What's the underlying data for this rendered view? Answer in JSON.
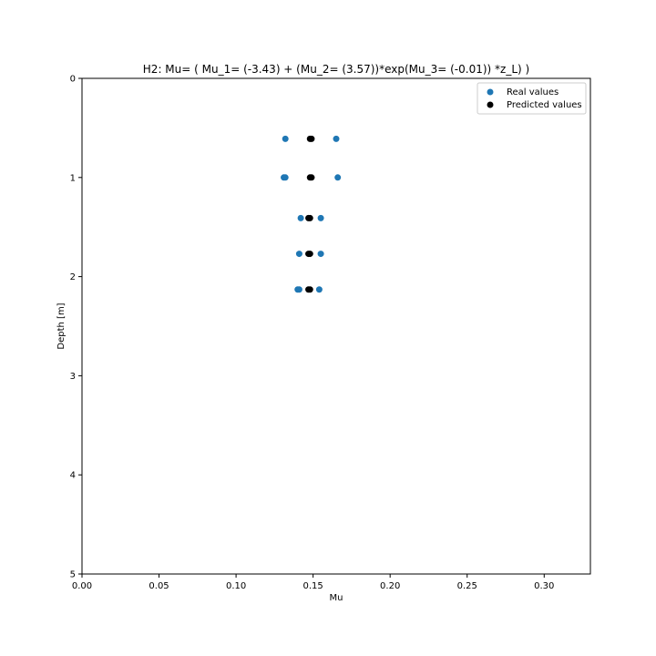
{
  "chart_data": {
    "type": "scatter",
    "title": "H2: Mu= ( Mu_1= (-3.43) + (Mu_2= (3.57))*exp(Mu_3= (-0.01)) *z_L) )",
    "xlabel": "Mu",
    "ylabel": "Depth [m]",
    "xlim": [
      0.0,
      0.33
    ],
    "ylim": [
      0,
      5
    ],
    "y_inverted": true,
    "xticks": [
      "0.00",
      "0.05",
      "0.10",
      "0.15",
      "0.20",
      "0.25",
      "0.30"
    ],
    "yticks": [
      "0",
      "1",
      "2",
      "3",
      "4",
      "5"
    ],
    "grid": false,
    "legend_position": "top-right",
    "series": [
      {
        "name": "Real values",
        "color": "#1f77b4",
        "points": [
          {
            "x": 0.132,
            "y": 0.61
          },
          {
            "x": 0.165,
            "y": 0.61
          },
          {
            "x": 0.131,
            "y": 1.0
          },
          {
            "x": 0.132,
            "y": 1.0
          },
          {
            "x": 0.166,
            "y": 1.0
          },
          {
            "x": 0.142,
            "y": 1.41
          },
          {
            "x": 0.155,
            "y": 1.41
          },
          {
            "x": 0.141,
            "y": 1.77
          },
          {
            "x": 0.155,
            "y": 1.77
          },
          {
            "x": 0.14,
            "y": 2.13
          },
          {
            "x": 0.141,
            "y": 2.13
          },
          {
            "x": 0.154,
            "y": 2.13
          }
        ]
      },
      {
        "name": "Predicted values",
        "color": "#000000",
        "points": [
          {
            "x": 0.148,
            "y": 0.61
          },
          {
            "x": 0.149,
            "y": 0.61
          },
          {
            "x": 0.148,
            "y": 1.0
          },
          {
            "x": 0.149,
            "y": 1.0
          },
          {
            "x": 0.147,
            "y": 1.41
          },
          {
            "x": 0.148,
            "y": 1.41
          },
          {
            "x": 0.147,
            "y": 1.77
          },
          {
            "x": 0.148,
            "y": 1.77
          },
          {
            "x": 0.147,
            "y": 2.13
          },
          {
            "x": 0.148,
            "y": 2.13
          }
        ]
      }
    ]
  }
}
